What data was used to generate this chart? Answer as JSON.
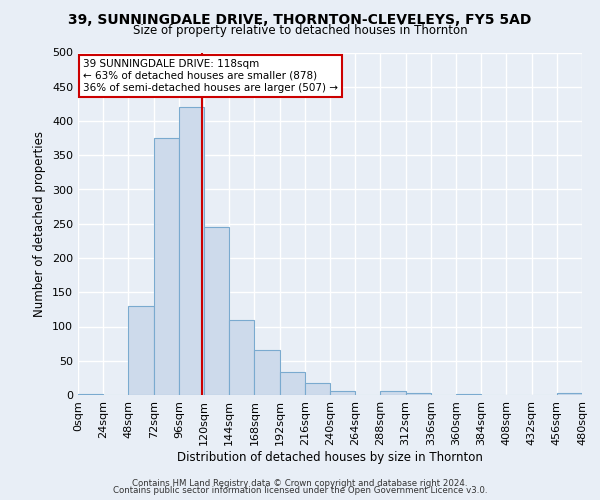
{
  "title": "39, SUNNINGDALE DRIVE, THORNTON-CLEVELEYS, FY5 5AD",
  "subtitle": "Size of property relative to detached houses in Thornton",
  "xlabel": "Distribution of detached houses by size in Thornton",
  "ylabel": "Number of detached properties",
  "bin_edges": [
    0,
    24,
    48,
    72,
    96,
    120,
    144,
    168,
    192,
    216,
    240,
    264,
    288,
    312,
    336,
    360,
    384,
    408,
    432,
    456,
    480
  ],
  "bar_heights": [
    2,
    0,
    130,
    375,
    420,
    245,
    110,
    65,
    33,
    18,
    6,
    0,
    6,
    3,
    0,
    2,
    0,
    0,
    0,
    3
  ],
  "bar_color": "#cddaeb",
  "bar_edge_color": "#7aaacf",
  "property_size": 118,
  "vline_color": "#cc0000",
  "annotation_line1": "39 SUNNINGDALE DRIVE: 118sqm",
  "annotation_line2": "← 63% of detached houses are smaller (878)",
  "annotation_line3": "36% of semi-detached houses are larger (507) →",
  "annotation_box_color": "#ffffff",
  "annotation_box_edge": "#cc0000",
  "ylim": [
    0,
    500
  ],
  "footer1": "Contains HM Land Registry data © Crown copyright and database right 2024.",
  "footer2": "Contains public sector information licensed under the Open Government Licence v3.0.",
  "bg_color": "#e8eef6",
  "plot_bg_color": "#e8eef6",
  "grid_color": "#ffffff",
  "tick_labels": [
    "0sqm",
    "24sqm",
    "48sqm",
    "72sqm",
    "96sqm",
    "120sqm",
    "144sqm",
    "168sqm",
    "192sqm",
    "216sqm",
    "240sqm",
    "264sqm",
    "288sqm",
    "312sqm",
    "336sqm",
    "360sqm",
    "384sqm",
    "408sqm",
    "432sqm",
    "456sqm",
    "480sqm"
  ]
}
